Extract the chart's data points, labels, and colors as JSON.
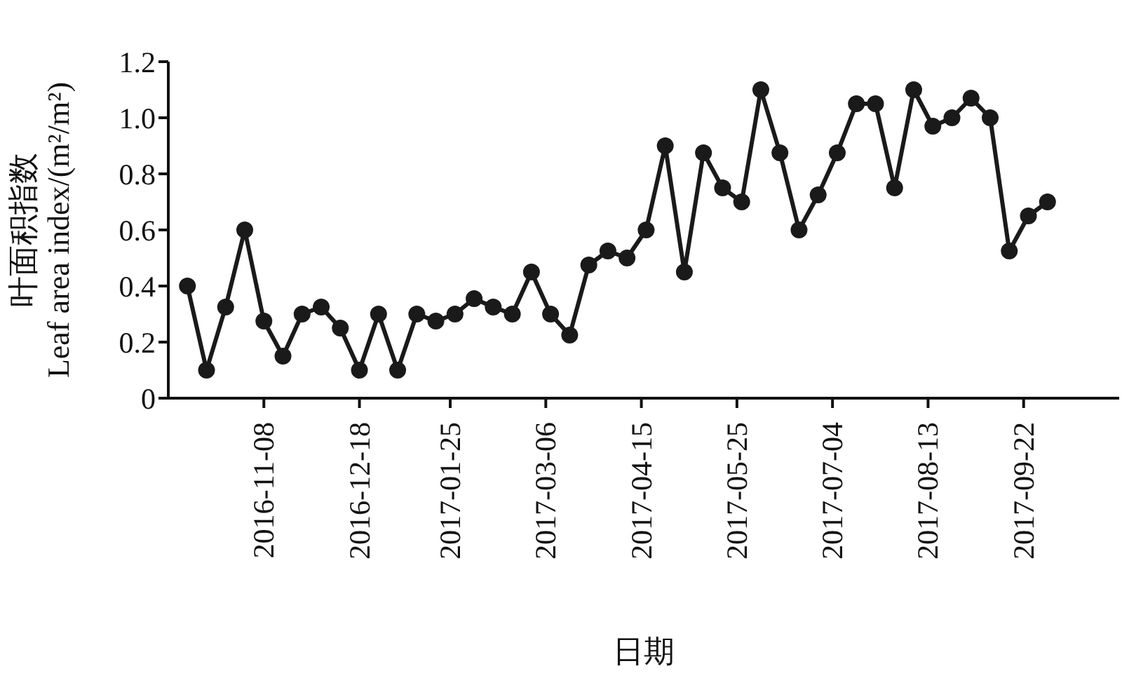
{
  "chart_data": {
    "type": "line",
    "xlabel": "日期",
    "ylabel": "叶面积指数\nLeaf area index/(m²/m²)",
    "x": [
      "2016-10-07",
      "2016-10-15",
      "2016-10-23",
      "2016-10-31",
      "2016-11-08",
      "2016-11-16",
      "2016-11-24",
      "2016-12-02",
      "2016-12-10",
      "2016-12-18",
      "2016-12-26",
      "2017-01-03",
      "2017-01-11",
      "2017-01-19",
      "2017-01-27",
      "2017-02-04",
      "2017-02-12",
      "2017-02-20",
      "2017-02-28",
      "2017-03-08",
      "2017-03-16",
      "2017-03-24",
      "2017-04-01",
      "2017-04-09",
      "2017-04-17",
      "2017-04-25",
      "2017-05-03",
      "2017-05-11",
      "2017-05-19",
      "2017-05-27",
      "2017-06-04",
      "2017-06-12",
      "2017-06-20",
      "2017-06-28",
      "2017-07-06",
      "2017-07-14",
      "2017-07-22",
      "2017-07-30",
      "2017-08-07",
      "2017-08-15",
      "2017-08-23",
      "2017-08-31",
      "2017-09-08",
      "2017-09-16",
      "2017-09-24",
      "2017-10-02"
    ],
    "series": [
      {
        "color": "#1a1a1a",
        "values": [
          0.4,
          0.1,
          0.325,
          0.6,
          0.275,
          0.15,
          0.3,
          0.325,
          0.25,
          0.1,
          0.3,
          0.1,
          0.3,
          0.275,
          0.3,
          0.355,
          0.325,
          0.3,
          0.45,
          0.3,
          0.225,
          0.475,
          0.525,
          0.5,
          0.6,
          0.9,
          0.45,
          0.875,
          0.75,
          0.7,
          1.1,
          0.875,
          0.6,
          0.725,
          0.875,
          1.05,
          1.05,
          0.75,
          1.1,
          0.97,
          1.0,
          1.07,
          1.0,
          0.525,
          0.65,
          0.7
        ]
      }
    ],
    "xlim": [
      "2016-09-29",
      "2017-11-01"
    ],
    "xticks": [
      "2016-11-08",
      "2016-12-18",
      "2017-01-25",
      "2017-03-06",
      "2017-04-15",
      "2017-05-25",
      "2017-07-04",
      "2017-08-13",
      "2017-09-22"
    ],
    "ylim": [
      0,
      1.2
    ],
    "yticks": [
      0,
      0.2,
      0.4,
      0.6,
      0.8,
      {
        "value": 1,
        "label": "1.0"
      },
      1.2
    ],
    "grid": false,
    "legend": false,
    "marker": "circle",
    "line_style": "solid"
  }
}
